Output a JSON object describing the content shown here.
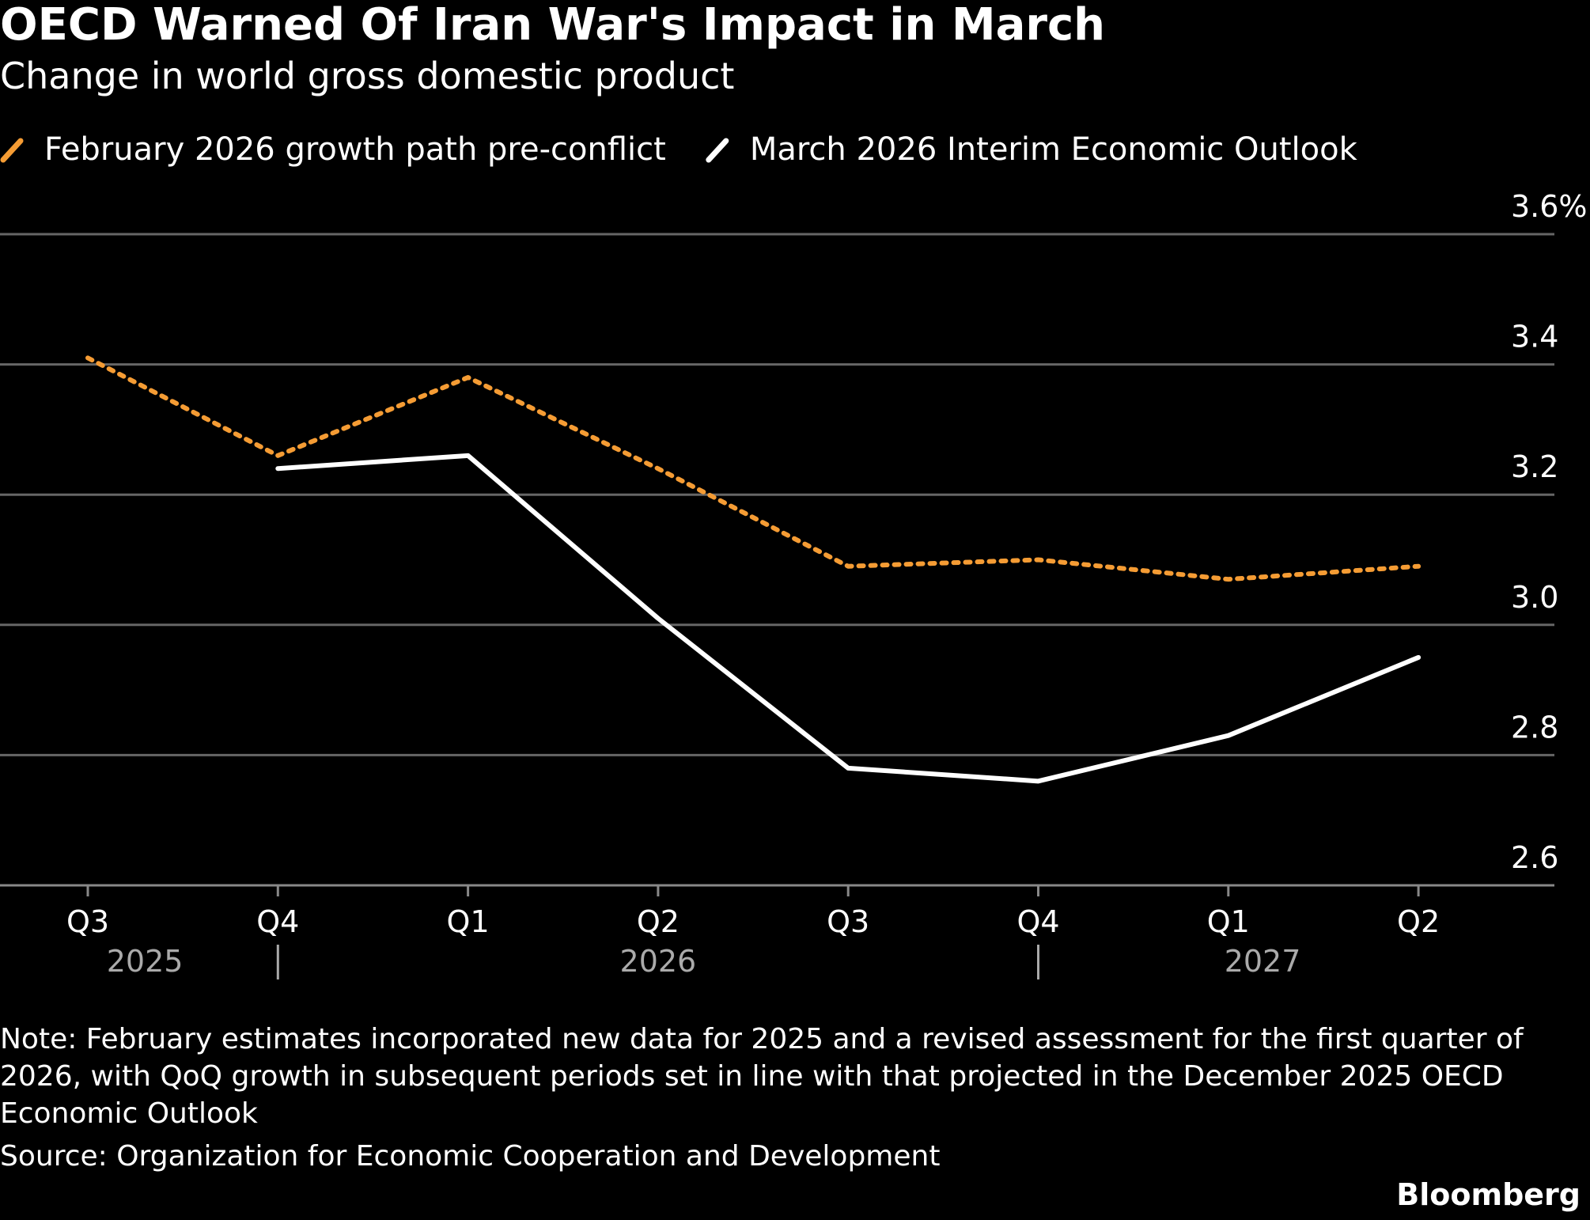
{
  "chart_data": {
    "type": "line",
    "title": "OECD Warned Of Iran War's Impact in March",
    "subtitle": "Change in world gross domestic product",
    "categories": [
      "Q3",
      "Q4",
      "Q1",
      "Q2",
      "Q3",
      "Q4",
      "Q1",
      "Q2"
    ],
    "x_group_labels": [
      "2025",
      "2026",
      "2027"
    ],
    "series": [
      {
        "name": "February 2026 growth path pre-conflict",
        "color": "#f59c34",
        "dashed": true,
        "values": [
          3.41,
          3.26,
          3.38,
          3.24,
          3.09,
          3.1,
          3.07,
          3.09
        ]
      },
      {
        "name": "March 2026 Interim Economic Outlook",
        "color": "#ffffff",
        "dashed": false,
        "values": [
          null,
          3.24,
          3.26,
          3.01,
          2.78,
          2.76,
          2.83,
          2.95
        ]
      }
    ],
    "ylim": [
      2.6,
      3.6
    ],
    "yticks": [
      2.6,
      2.8,
      {
        "value": 3,
        "label": "3.0"
      },
      3.2,
      3.4,
      {
        "value": 3.6,
        "label": "3.6%"
      }
    ],
    "grid": true,
    "note": "Note: February estimates incorporated new data for 2025 and a revised assessment for the first quarter of 2026, with QoQ growth in subsequent periods set in line with that projected in the December 2025 OECD Economic Outlook",
    "source": "Source: Organization for Economic Cooperation and Development",
    "brand": "Bloomberg"
  }
}
